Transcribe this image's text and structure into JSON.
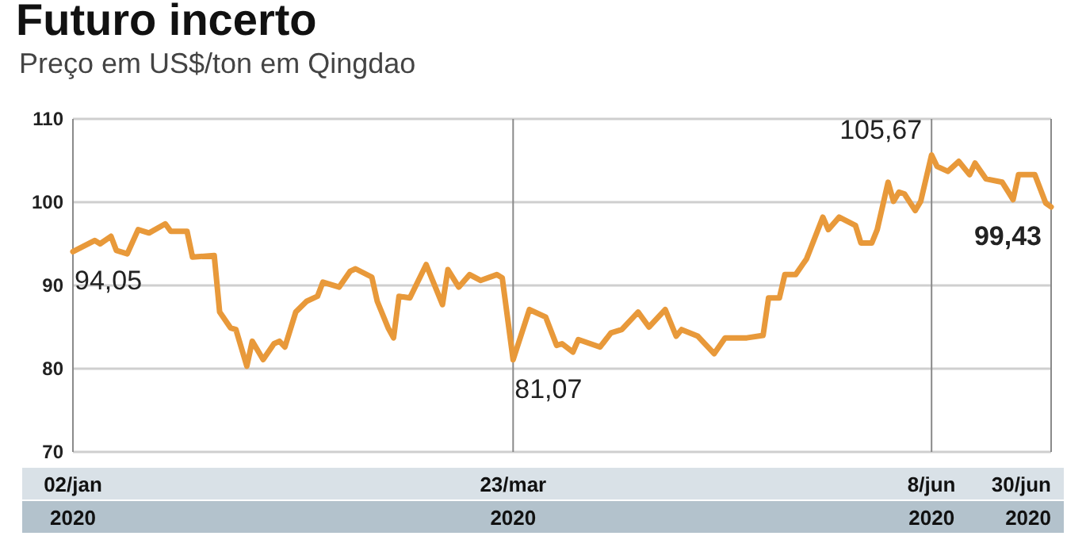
{
  "chart_data": {
    "type": "line",
    "title": "Futuro incerto",
    "subtitle": "Preço em US$/ton em Qingdao",
    "x": [
      "2020-01-02",
      "2020-01-06",
      "2020-01-07",
      "2020-01-09",
      "2020-01-10",
      "2020-01-12",
      "2020-01-14",
      "2020-01-16",
      "2020-01-19",
      "2020-01-20",
      "2020-01-23",
      "2020-01-24",
      "2020-01-28",
      "2020-01-29",
      "2020-01-31",
      "2020-02-01",
      "2020-02-03",
      "2020-02-04",
      "2020-02-06",
      "2020-02-08",
      "2020-02-09",
      "2020-02-10",
      "2020-02-12",
      "2020-02-14",
      "2020-02-16",
      "2020-02-17",
      "2020-02-20",
      "2020-02-22",
      "2020-02-23",
      "2020-02-26",
      "2020-02-27",
      "2020-02-29",
      "2020-03-01",
      "2020-03-02",
      "2020-03-04",
      "2020-03-07",
      "2020-03-10",
      "2020-03-11",
      "2020-03-13",
      "2020-03-15",
      "2020-03-17",
      "2020-03-20",
      "2020-03-21",
      "2020-03-23",
      "2020-03-26",
      "2020-03-29",
      "2020-03-31",
      "2020-04-01",
      "2020-04-03",
      "2020-04-04",
      "2020-04-08",
      "2020-04-10",
      "2020-04-12",
      "2020-04-15",
      "2020-04-17",
      "2020-04-20",
      "2020-04-22",
      "2020-04-23",
      "2020-04-26",
      "2020-04-29",
      "2020-05-01",
      "2020-05-03",
      "2020-05-05",
      "2020-05-08",
      "2020-05-09",
      "2020-05-11",
      "2020-05-12",
      "2020-05-14",
      "2020-05-16",
      "2020-05-19",
      "2020-05-20",
      "2020-05-22",
      "2020-05-25",
      "2020-05-26",
      "2020-05-28",
      "2020-05-29",
      "2020-05-31",
      "2020-06-01",
      "2020-06-02",
      "2020-06-03",
      "2020-06-05",
      "2020-06-06",
      "2020-06-08",
      "2020-06-09",
      "2020-06-11",
      "2020-06-13",
      "2020-06-15",
      "2020-06-16",
      "2020-06-18",
      "2020-06-21",
      "2020-06-23",
      "2020-06-24",
      "2020-06-27",
      "2020-06-29",
      "2020-06-30"
    ],
    "series": [
      {
        "color": "#e8993a",
        "values": [
          94.05,
          95.4,
          95,
          95.9,
          94.2,
          93.8,
          96.7,
          96.3,
          97.4,
          96.5,
          96.5,
          93.4,
          93.6,
          86.8,
          84.9,
          84.7,
          80.3,
          83.3,
          81.1,
          83,
          83.3,
          82.6,
          86.8,
          88.1,
          88.7,
          90.4,
          89.8,
          91.7,
          92,
          91,
          88.1,
          84.9,
          83.7,
          88.7,
          88.5,
          92.5,
          87.7,
          91.9,
          89.8,
          91.3,
          90.6,
          91.3,
          90.9,
          81.07,
          87.1,
          86.2,
          82.8,
          83,
          82,
          83.5,
          82.6,
          84.3,
          84.7,
          86.8,
          85,
          87.1,
          83.9,
          84.7,
          83.9,
          81.8,
          83.7,
          83.7,
          83.7,
          84,
          88.5,
          88.5,
          91.3,
          91.3,
          93.2,
          98.2,
          96.7,
          98.2,
          97.2,
          95.1,
          95.1,
          96.7,
          102.4,
          100.1,
          101.2,
          101,
          99,
          100.1,
          105.67,
          104.3,
          103.7,
          104.9,
          103.3,
          104.7,
          102.8,
          102.4,
          100.3,
          103.3,
          103.3,
          99.9,
          99.43
        ]
      }
    ],
    "xlim": [
      "2020-01-02",
      "2020-06-30"
    ],
    "xticks": [
      {
        "value": "2020-01-02",
        "label": "02/jan 2020"
      },
      {
        "value": "2020-03-23",
        "label": "23/mar 2020"
      },
      {
        "value": "2020-06-08",
        "label": "8/jun 2020"
      },
      {
        "value": "2020-06-30",
        "label": "30/jun 2020"
      }
    ],
    "ylim": [
      70,
      110
    ],
    "yticks": [
      70,
      80,
      90,
      100,
      110
    ],
    "grid": true,
    "line_style": "solid",
    "marker": "none",
    "annotations": [
      {
        "text": "94,05",
        "x": "2020-01-02",
        "y": 94.05
      },
      {
        "text": "81,07",
        "x": "2020-03-23",
        "y": 81.07
      },
      {
        "text": "105,67",
        "x": "2020-06-08",
        "y": 105.67
      },
      {
        "text": "99,43",
        "x": "2020-06-30",
        "y": 99.43
      }
    ]
  }
}
